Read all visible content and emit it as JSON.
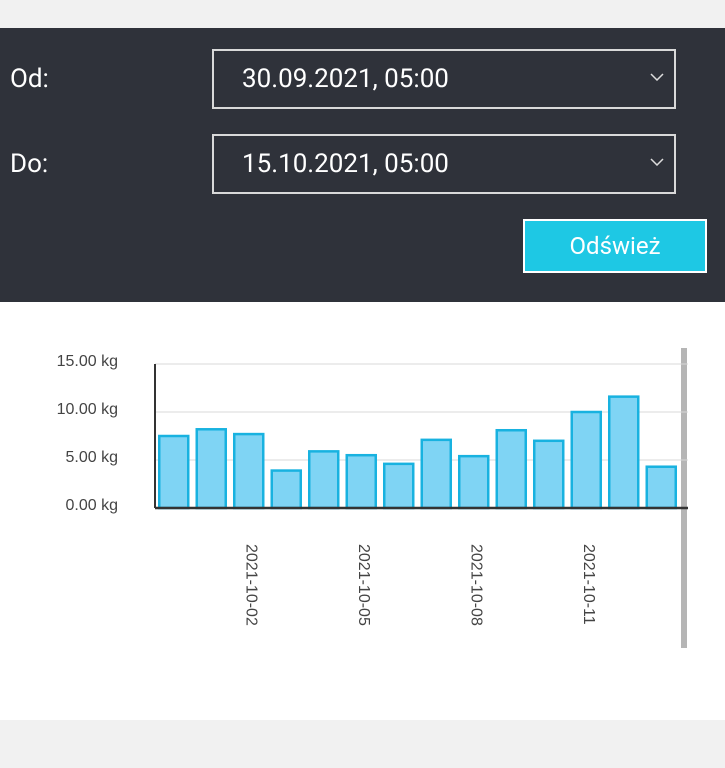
{
  "form": {
    "from": {
      "label": "Od:",
      "value": "30.09.2021, 05:00"
    },
    "to": {
      "label": "Do:",
      "value": "15.10.2021, 05:00"
    },
    "button": "Odśwież"
  },
  "chart_data": {
    "type": "bar",
    "categories": [
      null,
      null,
      "2021-10-02",
      null,
      null,
      "2021-10-05",
      null,
      null,
      "2021-10-08",
      null,
      null,
      "2021-10-11",
      null,
      null
    ],
    "values": [
      7.5,
      8.2,
      7.7,
      3.9,
      5.9,
      5.5,
      4.6,
      7.1,
      5.4,
      8.1,
      7.0,
      10.0,
      11.6,
      4.3
    ],
    "color": "#7fd4f4",
    "ylim": [
      0,
      15
    ],
    "yticks": [
      {
        "value": 0,
        "label": "0.00 kg"
      },
      {
        "value": 5,
        "label": "5.00 kg"
      },
      {
        "value": 10,
        "label": "10.00 kg"
      },
      {
        "value": 15,
        "label": "15.00 kg"
      }
    ],
    "grid": true
  }
}
